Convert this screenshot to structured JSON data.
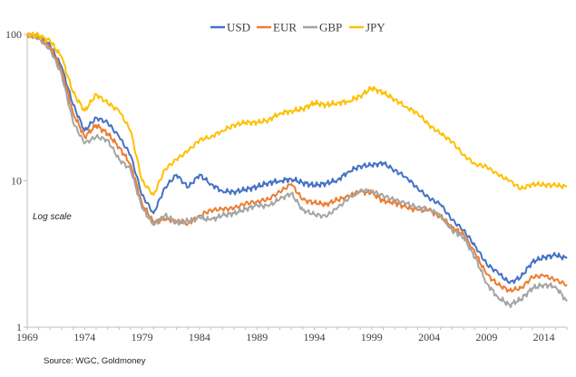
{
  "chart_data": {
    "type": "line",
    "title": "",
    "xlabel": "",
    "ylabel": "",
    "y_scale": "log",
    "ylim": [
      1,
      100
    ],
    "xlim": [
      1969,
      2016
    ],
    "y_ticks": [
      "1",
      "10",
      "100"
    ],
    "x_ticks": [
      "1969",
      "1974",
      "1979",
      "1984",
      "1989",
      "1994",
      "1999",
      "2004",
      "2009",
      "2014"
    ],
    "grid": false,
    "legend_position": "top",
    "annotation": "Log scale",
    "source": "Source: WGC, Goldmoney",
    "series": [
      {
        "name": "USD",
        "color": "#4472C4",
        "points": [
          [
            1969,
            100
          ],
          [
            1970,
            97
          ],
          [
            1971,
            84
          ],
          [
            1972,
            60
          ],
          [
            1973,
            33
          ],
          [
            1974,
            22
          ],
          [
            1975,
            27
          ],
          [
            1976,
            25
          ],
          [
            1977,
            20
          ],
          [
            1978,
            15
          ],
          [
            1979,
            8
          ],
          [
            1980,
            6
          ],
          [
            1981,
            9
          ],
          [
            1982,
            11
          ],
          [
            1983,
            9
          ],
          [
            1984,
            11
          ],
          [
            1985,
            9.5
          ],
          [
            1986,
            8.5
          ],
          [
            1987,
            8.4
          ],
          [
            1988,
            8.7
          ],
          [
            1989,
            9.1
          ],
          [
            1990,
            9.7
          ],
          [
            1991,
            10
          ],
          [
            1992,
            10.3
          ],
          [
            1993,
            9.7
          ],
          [
            1994,
            9.3
          ],
          [
            1995,
            9.6
          ],
          [
            1996,
            10.1
          ],
          [
            1997,
            11.6
          ],
          [
            1998,
            12.6
          ],
          [
            1999,
            12.8
          ],
          [
            2000,
            13.2
          ],
          [
            2001,
            11.8
          ],
          [
            2002,
            10.6
          ],
          [
            2003,
            8.9
          ],
          [
            2004,
            7.6
          ],
          [
            2005,
            6.9
          ],
          [
            2006,
            5.4
          ],
          [
            2007,
            4.6
          ],
          [
            2008,
            3.6
          ],
          [
            2009,
            2.7
          ],
          [
            2010,
            2.35
          ],
          [
            2011,
            2
          ],
          [
            2012,
            2.2
          ],
          [
            2013,
            2.8
          ],
          [
            2014,
            3
          ],
          [
            2015,
            3.1
          ],
          [
            2016,
            2.95
          ]
        ]
      },
      {
        "name": "EUR",
        "color": "#ED7D31",
        "points": [
          [
            1969,
            100
          ],
          [
            1970,
            96
          ],
          [
            1971,
            82
          ],
          [
            1972,
            57
          ],
          [
            1973,
            29
          ],
          [
            1974,
            20
          ],
          [
            1975,
            24
          ],
          [
            1976,
            21
          ],
          [
            1977,
            17
          ],
          [
            1978,
            13
          ],
          [
            1979,
            7
          ],
          [
            1980,
            5.2
          ],
          [
            1981,
            5.5
          ],
          [
            1982,
            5.3
          ],
          [
            1983,
            5.1
          ],
          [
            1984,
            5.8
          ],
          [
            1985,
            6.3
          ],
          [
            1986,
            6.4
          ],
          [
            1987,
            6.5
          ],
          [
            1988,
            7
          ],
          [
            1989,
            7.2
          ],
          [
            1990,
            7.5
          ],
          [
            1991,
            8.4
          ],
          [
            1992,
            9.5
          ],
          [
            1993,
            7.4
          ],
          [
            1994,
            7.1
          ],
          [
            1995,
            6.9
          ],
          [
            1996,
            7.4
          ],
          [
            1997,
            7.8
          ],
          [
            1998,
            8.4
          ],
          [
            1999,
            8.3
          ],
          [
            2000,
            7.3
          ],
          [
            2001,
            7.1
          ],
          [
            2002,
            6.6
          ],
          [
            2003,
            6.3
          ],
          [
            2004,
            6.3
          ],
          [
            2005,
            5.7
          ],
          [
            2006,
            4.8
          ],
          [
            2007,
            4.3
          ],
          [
            2008,
            3.2
          ],
          [
            2009,
            2.3
          ],
          [
            2010,
            1.95
          ],
          [
            2011,
            1.78
          ],
          [
            2012,
            1.85
          ],
          [
            2013,
            2.2
          ],
          [
            2014,
            2.25
          ],
          [
            2015,
            2.1
          ],
          [
            2016,
            1.95
          ]
        ]
      },
      {
        "name": "GBP",
        "color": "#A5A5A5",
        "points": [
          [
            1969,
            100
          ],
          [
            1970,
            94
          ],
          [
            1971,
            79
          ],
          [
            1972,
            53
          ],
          [
            1973,
            25
          ],
          [
            1974,
            18
          ],
          [
            1975,
            20
          ],
          [
            1976,
            19
          ],
          [
            1977,
            14
          ],
          [
            1978,
            12
          ],
          [
            1979,
            6.5
          ],
          [
            1980,
            5
          ],
          [
            1981,
            5.8
          ],
          [
            1982,
            5.2
          ],
          [
            1983,
            5.3
          ],
          [
            1984,
            5.6
          ],
          [
            1985,
            5.4
          ],
          [
            1986,
            5.8
          ],
          [
            1987,
            6
          ],
          [
            1988,
            6.4
          ],
          [
            1989,
            6.8
          ],
          [
            1990,
            6.7
          ],
          [
            1991,
            7.5
          ],
          [
            1992,
            8.2
          ],
          [
            1993,
            6.3
          ],
          [
            1994,
            5.9
          ],
          [
            1995,
            5.7
          ],
          [
            1996,
            6.5
          ],
          [
            1997,
            7.6
          ],
          [
            1998,
            8.6
          ],
          [
            1999,
            8.5
          ],
          [
            2000,
            7.9
          ],
          [
            2001,
            7.4
          ],
          [
            2002,
            7
          ],
          [
            2003,
            6.6
          ],
          [
            2004,
            6.4
          ],
          [
            2005,
            5.8
          ],
          [
            2006,
            4.6
          ],
          [
            2007,
            4.1
          ],
          [
            2008,
            3
          ],
          [
            2009,
            2
          ],
          [
            2010,
            1.6
          ],
          [
            2011,
            1.42
          ],
          [
            2012,
            1.55
          ],
          [
            2013,
            1.85
          ],
          [
            2014,
            1.95
          ],
          [
            2015,
            1.9
          ],
          [
            2016,
            1.5
          ]
        ]
      },
      {
        "name": "JPY",
        "color": "#FFC000",
        "points": [
          [
            1969,
            100
          ],
          [
            1970,
            98
          ],
          [
            1971,
            90
          ],
          [
            1972,
            70
          ],
          [
            1973,
            40
          ],
          [
            1974,
            30
          ],
          [
            1975,
            39
          ],
          [
            1976,
            34
          ],
          [
            1977,
            30
          ],
          [
            1978,
            22
          ],
          [
            1979,
            10
          ],
          [
            1980,
            8
          ],
          [
            1981,
            12
          ],
          [
            1982,
            14
          ],
          [
            1983,
            16
          ],
          [
            1984,
            19
          ],
          [
            1985,
            20
          ],
          [
            1986,
            22
          ],
          [
            1987,
            24
          ],
          [
            1988,
            25
          ],
          [
            1989,
            25
          ],
          [
            1990,
            26
          ],
          [
            1991,
            29
          ],
          [
            1992,
            30
          ],
          [
            1993,
            31
          ],
          [
            1994,
            34
          ],
          [
            1995,
            33
          ],
          [
            1996,
            34
          ],
          [
            1997,
            35
          ],
          [
            1998,
            38
          ],
          [
            1999,
            43
          ],
          [
            2000,
            40
          ],
          [
            2001,
            36
          ],
          [
            2002,
            32
          ],
          [
            2003,
            29
          ],
          [
            2004,
            24
          ],
          [
            2005,
            21
          ],
          [
            2006,
            18.5
          ],
          [
            2007,
            15
          ],
          [
            2008,
            13
          ],
          [
            2009,
            12.5
          ],
          [
            2010,
            11
          ],
          [
            2011,
            10
          ],
          [
            2012,
            8.8
          ],
          [
            2013,
            9.5
          ],
          [
            2014,
            9.4
          ],
          [
            2015,
            9.3
          ],
          [
            2016,
            9.1
          ]
        ]
      }
    ]
  }
}
